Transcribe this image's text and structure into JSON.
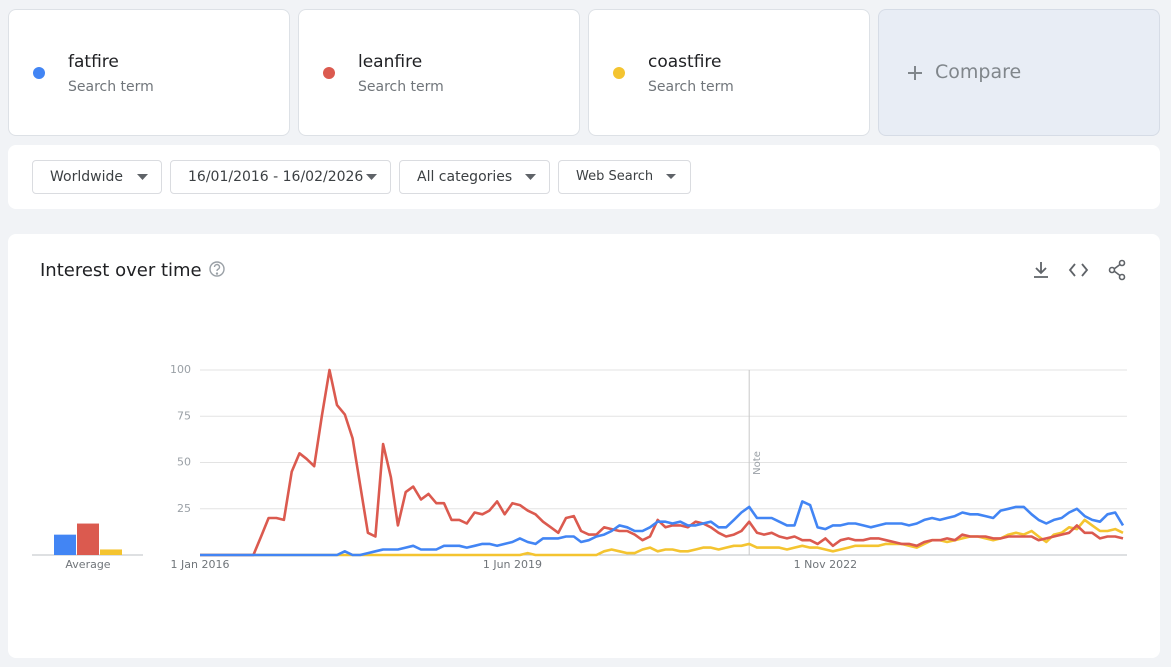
{
  "terms": [
    {
      "name": "fatfire",
      "subtitle": "Search term"
    },
    {
      "name": "leanfire",
      "subtitle": "Search term"
    },
    {
      "name": "coastfire",
      "subtitle": "Search term"
    }
  ],
  "compare": "Compare",
  "filters": [
    "Worldwide",
    "16/01/2016 - 16/02/2026",
    "All categories",
    "Web Search"
  ],
  "chart_data": {
    "type": "line",
    "title": "Interest over time",
    "x": [
      "2016-01-01",
      "2016-02-01",
      "2016-03-01",
      "2016-04-01",
      "2016-05-01",
      "2016-06-01",
      "2016-07-01",
      "2016-08-01",
      "2016-09-01",
      "2016-10-01",
      "2016-11-01",
      "2016-12-01",
      "2017-01-01",
      "2017-02-01",
      "2017-03-01",
      "2017-04-01",
      "2017-05-01",
      "2017-06-01",
      "2017-07-01",
      "2017-08-01",
      "2017-09-01",
      "2017-10-01",
      "2017-11-01",
      "2017-12-01",
      "2018-01-01",
      "2018-02-01",
      "2018-03-01",
      "2018-04-01",
      "2018-05-01",
      "2018-06-01",
      "2018-07-01",
      "2018-08-01",
      "2018-09-01",
      "2018-10-01",
      "2018-11-01",
      "2018-12-01",
      "2019-01-01",
      "2019-02-01",
      "2019-03-01",
      "2019-04-01",
      "2019-05-01",
      "2019-06-01",
      "2019-07-01",
      "2019-08-01",
      "2019-09-01",
      "2019-10-01",
      "2019-11-01",
      "2019-12-01",
      "2020-01-01",
      "2020-02-01",
      "2020-03-01",
      "2020-04-01",
      "2020-05-01",
      "2020-06-01",
      "2020-07-01",
      "2020-08-01",
      "2020-09-01",
      "2020-10-01",
      "2020-11-01",
      "2020-12-01",
      "2021-01-01",
      "2021-02-01",
      "2021-03-01",
      "2021-04-01",
      "2021-05-01",
      "2021-06-01",
      "2021-07-01",
      "2021-08-01",
      "2021-09-01",
      "2021-10-01",
      "2021-11-01",
      "2021-12-01",
      "2022-01-01",
      "2022-02-01",
      "2022-03-01",
      "2022-04-01",
      "2022-05-01",
      "2022-06-01",
      "2022-07-01",
      "2022-08-01",
      "2022-09-01",
      "2022-10-01",
      "2022-11-01",
      "2022-12-01",
      "2023-01-01",
      "2023-02-01",
      "2023-03-01",
      "2023-04-01",
      "2023-05-01",
      "2023-06-01",
      "2023-07-01",
      "2023-08-01",
      "2023-09-01",
      "2023-10-01",
      "2023-11-01",
      "2023-12-01",
      "2024-01-01",
      "2024-02-01",
      "2024-03-01",
      "2024-04-01",
      "2024-05-01",
      "2024-06-01",
      "2024-07-01",
      "2024-08-01",
      "2024-09-01",
      "2024-10-01",
      "2024-11-01",
      "2024-12-01",
      "2025-01-01",
      "2025-02-01",
      "2025-03-01",
      "2025-04-01",
      "2025-05-01",
      "2025-06-01",
      "2025-07-01",
      "2025-08-01",
      "2025-09-01",
      "2025-10-01",
      "2025-11-01",
      "2025-12-01",
      "2026-01-01",
      "2026-02-01"
    ],
    "series": [
      {
        "name": "fatfire",
        "color": "#4285f4",
        "average": 11,
        "values": [
          0,
          0,
          0,
          0,
          0,
          0,
          0,
          0,
          0,
          0,
          0,
          0,
          0,
          0,
          0,
          0,
          0,
          0,
          0,
          2,
          0,
          0,
          1,
          2,
          3,
          3,
          3,
          4,
          5,
          3,
          3,
          3,
          5,
          5,
          5,
          4,
          5,
          6,
          6,
          5,
          6,
          7,
          9,
          7,
          6,
          9,
          9,
          9,
          10,
          10,
          7,
          8,
          10,
          11,
          13,
          16,
          15,
          13,
          13,
          15,
          18,
          18,
          17,
          18,
          16,
          16,
          17,
          18,
          15,
          15,
          19,
          23,
          26,
          20,
          20,
          20,
          18,
          16,
          16,
          29,
          27,
          15,
          14,
          16,
          16,
          17,
          17,
          16,
          15,
          16,
          17,
          17,
          17,
          16,
          17,
          19,
          20,
          19,
          20,
          21,
          23,
          22,
          22,
          21,
          20,
          24,
          25,
          26,
          26,
          22,
          19,
          17,
          19,
          20,
          23,
          25,
          21,
          19,
          18,
          22,
          23,
          16
        ]
      },
      {
        "name": "leanfire",
        "color": "#db5a4f",
        "average": 17,
        "values": [
          0,
          0,
          0,
          0,
          0,
          0,
          0,
          0,
          10,
          20,
          20,
          19,
          45,
          55,
          52,
          48,
          75,
          100,
          81,
          76,
          63,
          38,
          12,
          10,
          60,
          42,
          16,
          34,
          37,
          30,
          33,
          28,
          28,
          19,
          19,
          17,
          23,
          22,
          24,
          29,
          22,
          28,
          27,
          24,
          22,
          18,
          15,
          12,
          20,
          21,
          13,
          11,
          11,
          15,
          14,
          13,
          13,
          11,
          8,
          10,
          19,
          15,
          16,
          16,
          15,
          18,
          17,
          15,
          12,
          10,
          11,
          13,
          18,
          12,
          11,
          12,
          10,
          9,
          10,
          8,
          8,
          6,
          9,
          5,
          8,
          9,
          8,
          8,
          9,
          9,
          8,
          7,
          6,
          6,
          5,
          7,
          8,
          8,
          9,
          8,
          11,
          10,
          10,
          10,
          9,
          9,
          10,
          10,
          10,
          10,
          8,
          9,
          10,
          11,
          12,
          16,
          12,
          12,
          9,
          10,
          10,
          9
        ]
      },
      {
        "name": "coastfire",
        "color": "#f4c430",
        "average": 3,
        "values": [
          0,
          0,
          0,
          0,
          0,
          0,
          0,
          0,
          0,
          0,
          0,
          0,
          0,
          0,
          0,
          0,
          0,
          0,
          0,
          0,
          0,
          0,
          0,
          0,
          0,
          0,
          0,
          0,
          0,
          0,
          0,
          0,
          0,
          0,
          0,
          0,
          0,
          0,
          0,
          0,
          0,
          0,
          0,
          1,
          0,
          0,
          0,
          0,
          0,
          0,
          0,
          0,
          0,
          2,
          3,
          2,
          1,
          1,
          3,
          4,
          2,
          3,
          3,
          2,
          2,
          3,
          4,
          4,
          3,
          4,
          5,
          5,
          6,
          4,
          4,
          4,
          4,
          3,
          4,
          5,
          4,
          4,
          3,
          2,
          3,
          4,
          5,
          5,
          5,
          5,
          6,
          6,
          6,
          5,
          4,
          6,
          8,
          8,
          7,
          8,
          9,
          10,
          10,
          9,
          8,
          9,
          11,
          12,
          11,
          13,
          10,
          7,
          11,
          12,
          15,
          14,
          19,
          16,
          13,
          13,
          14,
          12
        ]
      }
    ],
    "average_label": "Average",
    "note": {
      "x": "2022-01-01",
      "label": "Note"
    },
    "xlim": [
      "2016-01-01",
      "2026-02-01"
    ],
    "xticks": [
      {
        "value": "2016-01-01",
        "label": "1 Jan 2016"
      },
      {
        "value": "2019-06-01",
        "label": "1 Jun 2019"
      },
      {
        "value": "2022-11-01",
        "label": "1 Nov 2022"
      }
    ],
    "ylim": [
      0,
      100
    ],
    "yticks": [
      25,
      50,
      75,
      100
    ],
    "grid": true
  }
}
